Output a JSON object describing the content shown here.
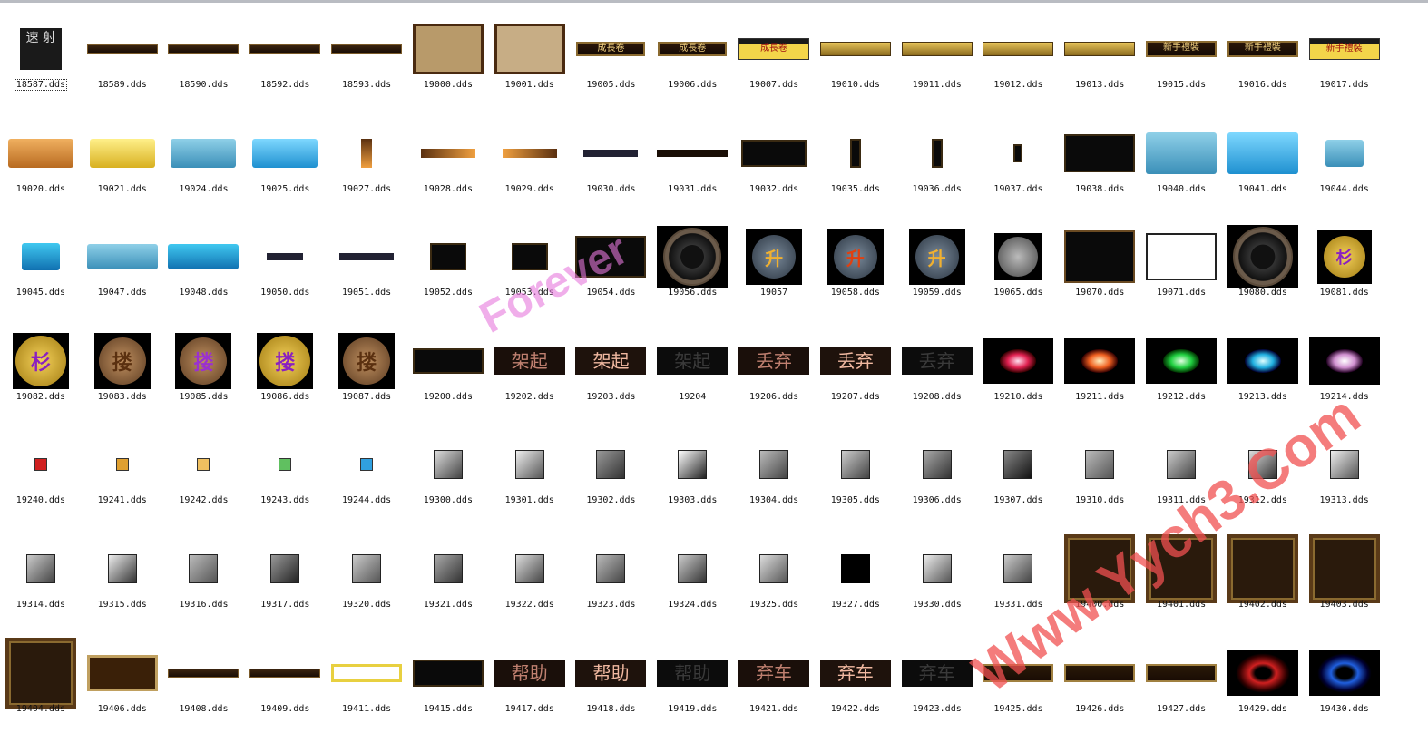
{
  "window": {
    "title": ""
  },
  "items": [
    "18587.dds",
    "18589.dds",
    "18590.dds",
    "18592.dds",
    "18593.dds",
    "19000.dds",
    "19001.dds",
    "19005.dds",
    "19006.dds",
    "19007.dds",
    "19010.dds",
    "19011.dds",
    "19012.dds",
    "19013.dds",
    "19015.dds",
    "19016.dds",
    "19017.dds",
    "19020.dds",
    "19021.dds",
    "19024.dds",
    "19025.dds",
    "19027.dds",
    "19028.dds",
    "19029.dds",
    "19030.dds",
    "19031.dds",
    "19032.dds",
    "19035.dds",
    "19036.dds",
    "19037.dds",
    "19038.dds",
    "19040.dds",
    "19041.dds",
    "19044.dds",
    "19045.dds",
    "19047.dds",
    "19048.dds",
    "19050.dds",
    "19051.dds",
    "19052.dds",
    "19053.dds",
    "19054.dds",
    "19056.dds",
    "19057",
    "19058.dds",
    "19059.dds",
    "19065.dds",
    "19070.dds",
    "19071.dds",
    "19080.dds",
    "19081.dds",
    "19082.dds",
    "19083.dds",
    "19085.dds",
    "19086.dds",
    "19087.dds",
    "19200.dds",
    "19202.dds",
    "19203.dds",
    "19204",
    "19206.dds",
    "19207.dds",
    "19208.dds",
    "19210.dds",
    "19211.dds",
    "19212.dds",
    "19213.dds",
    "19214.dds",
    "19240.dds",
    "19241.dds",
    "19242.dds",
    "19243.dds",
    "19244.dds",
    "19300.dds",
    "19301.dds",
    "19302.dds",
    "19303.dds",
    "19304.dds",
    "19305.dds",
    "19306.dds",
    "19307.dds",
    "19310.dds",
    "19311.dds",
    "19312.dds",
    "19313.dds",
    "19314.dds",
    "19315.dds",
    "19316.dds",
    "19317.dds",
    "19320.dds",
    "19321.dds",
    "19322.dds",
    "19323.dds",
    "19324.dds",
    "19325.dds",
    "19327.dds",
    "19330.dds",
    "19331.dds",
    "19400.dds",
    "19401.dds",
    "19402.dds",
    "19403.dds",
    "19404.dds",
    "19406.dds",
    "19408.dds",
    "19409.dds",
    "19411.dds",
    "19415.dds",
    "19417.dds",
    "19418.dds",
    "19419.dds",
    "19421.dds",
    "19422.dds",
    "19423.dds",
    "19425.dds",
    "19426.dds",
    "19427.dds",
    "19429.dds",
    "19430.dds"
  ],
  "thumb_text": {
    "speed_shot": "速 射",
    "banner_a": "成長卷",
    "banner_b": "新手禮裝",
    "t_qijia": "架起",
    "t_diuqi": "丢弃",
    "t_bangzhu": "帮助",
    "t_qiche": "弃车",
    "coin_sheng": "升",
    "coin_shan": "杉",
    "coin_lou": "搂"
  },
  "watermarks": {
    "wm1": "Forever",
    "wm2": "Www.Yych3.Com"
  },
  "selected_index": 0
}
